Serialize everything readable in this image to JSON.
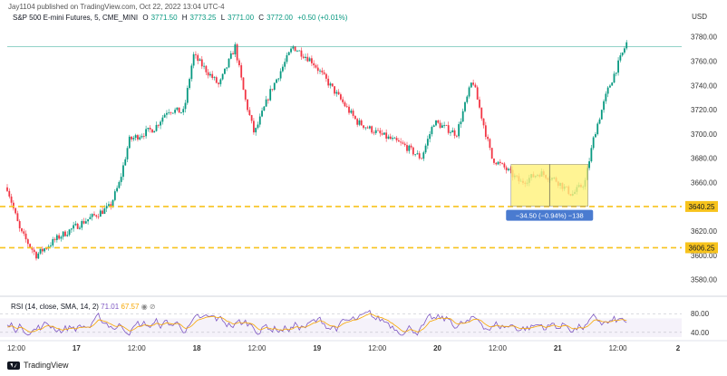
{
  "header": {
    "publisher": "Jay1104 published on TradingView.com, Oct 22, 2022 13:04 UTC-4",
    "symbol": "S&P 500 E-mini Futures, 5, CME_MINI",
    "open_label": "O",
    "open_value": "3771.50",
    "high_label": "H",
    "high_value": "3773.25",
    "low_label": "L",
    "low_value": "3771.00",
    "close_label": "C",
    "close_value": "3772.00",
    "change": "+0.50 (+0.01%)",
    "currency": "USD"
  },
  "rsi_legend": {
    "label": "RSI (14, close, SMA, 14, 2)",
    "rsi_value": "71.01",
    "sma_value": "67.57"
  },
  "footer": {
    "brand": "TradingView"
  },
  "colors": {
    "up": "#089981",
    "down": "#f23645",
    "hline": "#f7c31c",
    "box": "#fff27a",
    "measure_label": "#4a7bd0",
    "rsi": "#7e57c2",
    "rsi_sma": "#f7a600"
  },
  "chart_data": [
    {
      "type": "candlestick",
      "y_ticks": [
        3580,
        3600,
        3620,
        3640,
        3660,
        3680,
        3700,
        3720,
        3740,
        3760,
        3780
      ],
      "ylim": [
        3570,
        3788
      ],
      "x_ticks": [
        "12:00",
        "17",
        "12:00",
        "18",
        "12:00",
        "19",
        "12:00",
        "20",
        "12:00",
        "21",
        "12:00",
        "2"
      ],
      "price_path": [
        {
          "t": 0,
          "p": 3656
        },
        {
          "t": 0.02,
          "p": 3620
        },
        {
          "t": 0.045,
          "p": 3600
        },
        {
          "t": 0.08,
          "p": 3615
        },
        {
          "t": 0.12,
          "p": 3628
        },
        {
          "t": 0.16,
          "p": 3640
        },
        {
          "t": 0.175,
          "p": 3660
        },
        {
          "t": 0.19,
          "p": 3695
        },
        {
          "t": 0.23,
          "p": 3705
        },
        {
          "t": 0.25,
          "p": 3720
        },
        {
          "t": 0.275,
          "p": 3718
        },
        {
          "t": 0.29,
          "p": 3765
        },
        {
          "t": 0.33,
          "p": 3740
        },
        {
          "t": 0.355,
          "p": 3772
        },
        {
          "t": 0.37,
          "p": 3730
        },
        {
          "t": 0.385,
          "p": 3700
        },
        {
          "t": 0.41,
          "p": 3735
        },
        {
          "t": 0.445,
          "p": 3772
        },
        {
          "t": 0.475,
          "p": 3760
        },
        {
          "t": 0.51,
          "p": 3735
        },
        {
          "t": 0.545,
          "p": 3710
        },
        {
          "t": 0.58,
          "p": 3700
        },
        {
          "t": 0.62,
          "p": 3690
        },
        {
          "t": 0.645,
          "p": 3680
        },
        {
          "t": 0.665,
          "p": 3710
        },
        {
          "t": 0.7,
          "p": 3700
        },
        {
          "t": 0.725,
          "p": 3745
        },
        {
          "t": 0.755,
          "p": 3680
        },
        {
          "t": 0.775,
          "p": 3672
        },
        {
          "t": 0.8,
          "p": 3660
        },
        {
          "t": 0.83,
          "p": 3668
        },
        {
          "t": 0.855,
          "p": 3662
        },
        {
          "t": 0.88,
          "p": 3650
        },
        {
          "t": 0.9,
          "p": 3660
        },
        {
          "t": 0.915,
          "p": 3700
        },
        {
          "t": 0.935,
          "p": 3735
        },
        {
          "t": 0.965,
          "p": 3775
        }
      ],
      "current_price_line": 3772.0,
      "horizontal_lines": [
        {
          "price": 3640.25,
          "label": "3640.25"
        },
        {
          "price": 3606.25,
          "label": "3606.25"
        }
      ],
      "measure_box": {
        "from_price": 3675.0,
        "to_price": 3640.5,
        "label": "−34.50 (−0.94%) −138",
        "t_start": 0.785,
        "t_end": 0.905
      }
    },
    {
      "type": "line",
      "name": "RSI (14, close, SMA, 14, 2)",
      "y_ticks": [
        40,
        80
      ],
      "ylim": [
        30,
        92
      ],
      "band": [
        30,
        70
      ]
    }
  ]
}
